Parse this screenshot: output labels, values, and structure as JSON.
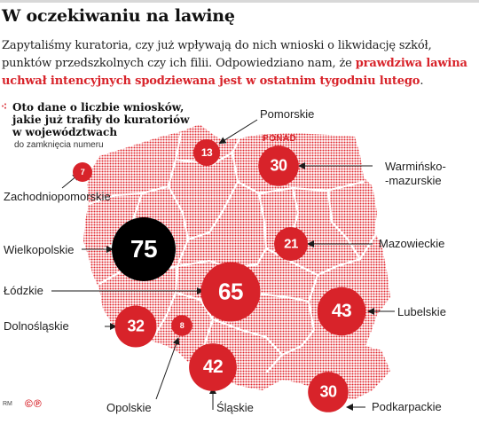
{
  "title": "W oczekiwaniu na lawinę",
  "intro": {
    "text_plain": "Zapytaliśmy kuratoria, czy już wpływają do nich wnioski o likwidację szkół, punktów przedszkolnych czy ich filii. Odpowiedziano nam, że ",
    "text_highlight": "prawdziwa lawina uchwał intencyjnych spodziewana jest w ostatnim tygodniu lutego",
    "text_end": "."
  },
  "legend": {
    "marker": "⁖",
    "line1": "Oto dane o liczbie wniosków,",
    "line2": "jakie już trafiły do kuratoriów",
    "line3": "w województwach",
    "sub": "do zamknięcia numeru"
  },
  "ponad_label": "PONAD",
  "colors": {
    "accent": "#d8232a",
    "dot_pattern": "#e1252c",
    "bubble_largest": "#000000",
    "text": "#1a1a1a"
  },
  "voivodeships": [
    {
      "name": "Zachodniopomorskie",
      "value": 7
    },
    {
      "name": "Pomorskie",
      "value": 13
    },
    {
      "name": "Warmińsko-mazurskie",
      "value": 30,
      "prefix": "PONAD"
    },
    {
      "name": "Wielkopolskie",
      "value": 75
    },
    {
      "name": "Mazowieckie",
      "value": 21
    },
    {
      "name": "Łódzkie",
      "value": 65
    },
    {
      "name": "Lubelskie",
      "value": 43
    },
    {
      "name": "Dolnośląskie",
      "value": 32
    },
    {
      "name": "Opolskie",
      "value": 8
    },
    {
      "name": "Śląskie",
      "value": 42
    },
    {
      "name": "Podkarpackie",
      "value": 30
    }
  ],
  "labels": {
    "zachodniopomorskie": "Zachodniopomorskie",
    "pomorskie": "Pomorskie",
    "warminsko_1": "Warmińsko-",
    "warminsko_2": "-mazurskie",
    "wielkopolskie": "Wielkopolskie",
    "mazowieckie": "Mazowieckie",
    "lodzkie": "Łódzkie",
    "lubelskie": "Lubelskie",
    "dolnoslaskie": "Dolnośląskie",
    "opolskie": "Opolskie",
    "slaskie": "Śląskie",
    "podkarpackie": "Podkarpackie"
  },
  "values": {
    "zachodniopomorskie": "7",
    "pomorskie": "13",
    "warminsko": "30",
    "wielkopolskie": "75",
    "mazowieckie": "21",
    "lodzkie": "65",
    "lubelskie": "43",
    "dolnoslaskie": "32",
    "opolskie": "8",
    "slaskie": "42",
    "podkarpackie": "30"
  },
  "credits": {
    "rm": "RM",
    "icons": "©℗"
  }
}
